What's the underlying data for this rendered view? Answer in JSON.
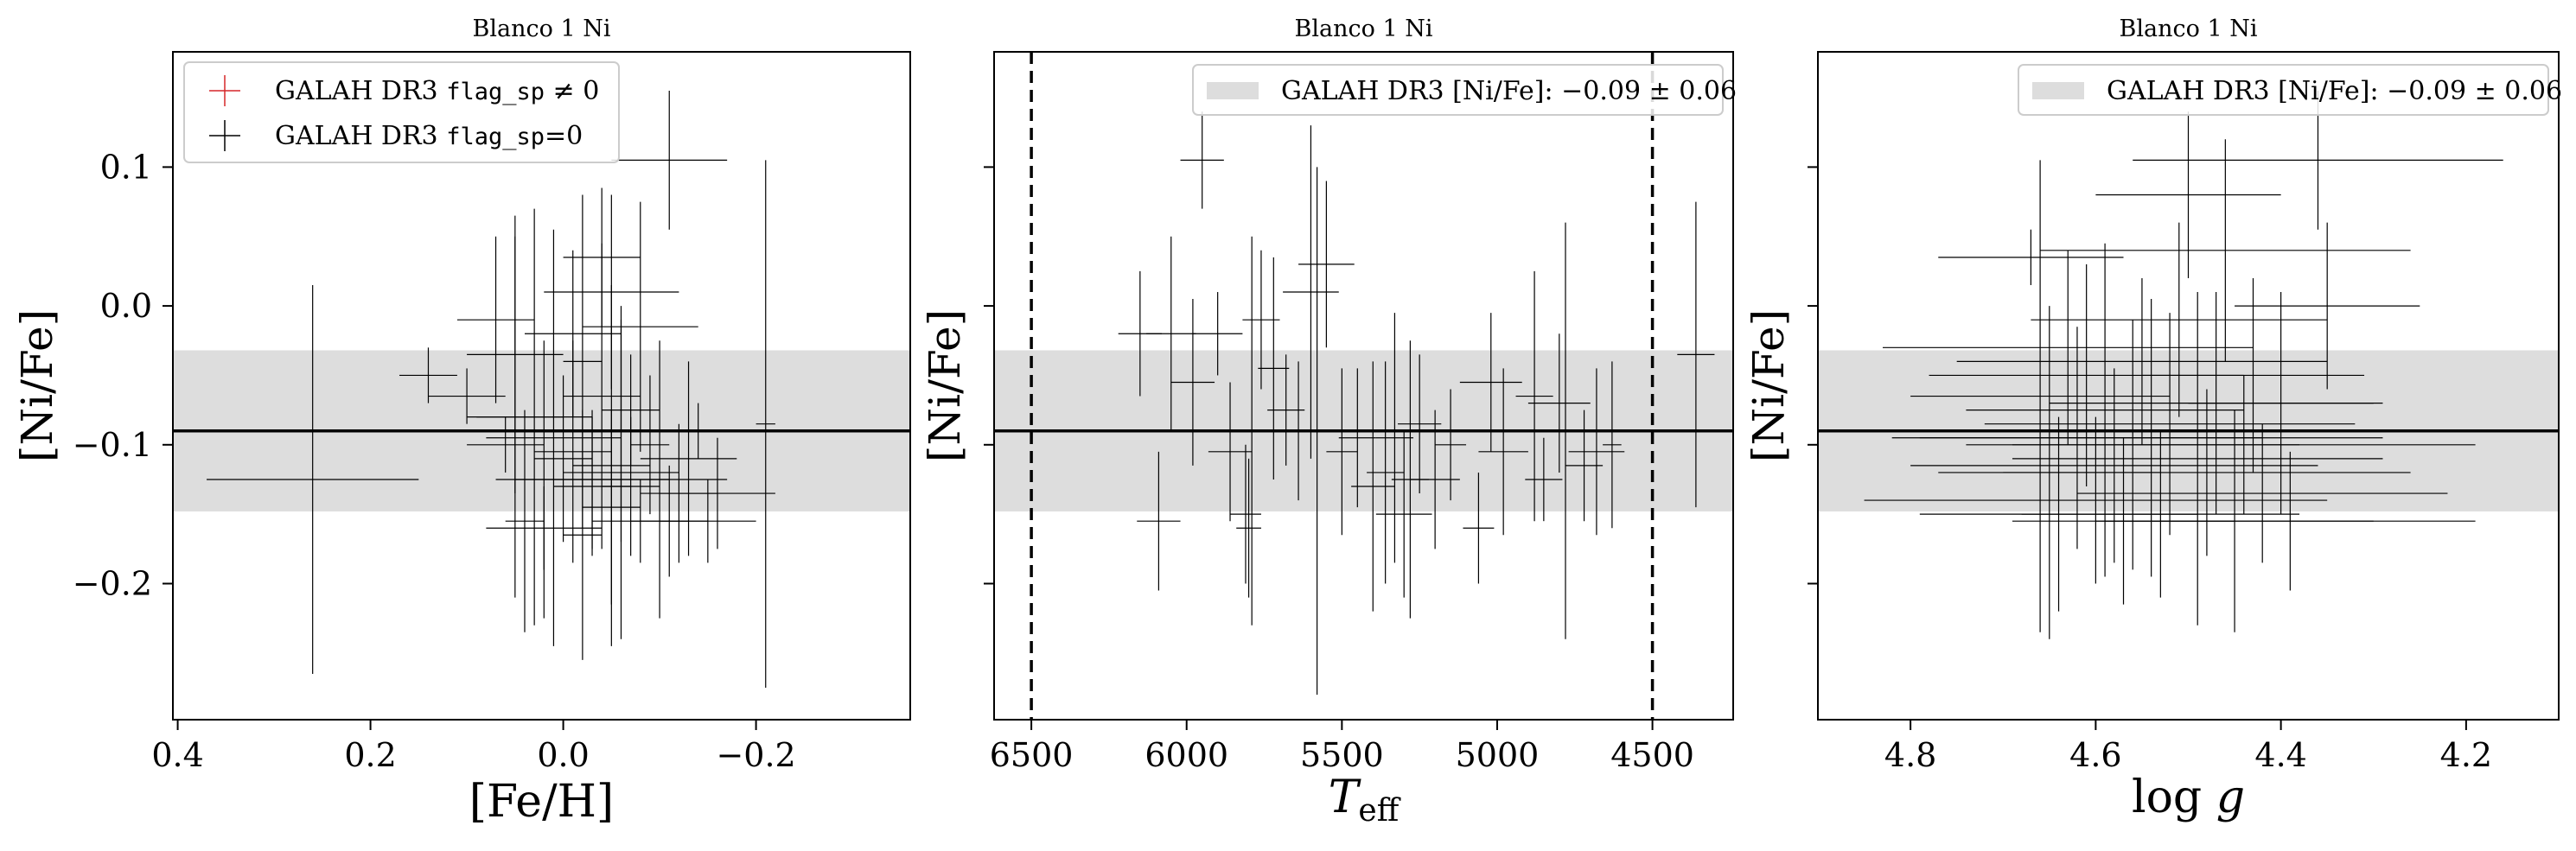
{
  "chart_data": [
    {
      "type": "scatter",
      "title": "Blanco 1 Ni",
      "xlabel": "[Fe/H]",
      "ylabel": "[Ni/Fe]",
      "xlim": [
        0.405,
        -0.36
      ],
      "ylim": [
        -0.298,
        0.183
      ],
      "xticks": [
        0.4,
        0.2,
        0.0,
        -0.2
      ],
      "xtick_labels": [
        "0.4",
        "0.2",
        "0.0",
        "−0.2"
      ],
      "yticks": [
        0.1,
        0.0,
        -0.1,
        -0.2
      ],
      "ytick_labels": [
        "0.1",
        "0.0",
        "−0.1",
        "−0.2"
      ],
      "band": {
        "center": -0.09,
        "halfwidth": 0.058
      },
      "hline": -0.09,
      "legend": {
        "position": "upper left",
        "entries": [
          {
            "prefix": "GALAH DR3 ",
            "code": "flag_sp",
            "suffix": " ≠ 0",
            "color": "#d62728"
          },
          {
            "prefix": "GALAH DR3 ",
            "code": "flag_sp",
            "suffix": "=0",
            "color": "#000000"
          }
        ]
      },
      "series": [
        {
          "color": "#000000",
          "points": [
            {
              "x": 0.26,
              "y": -0.125,
              "xerr": 0.11,
              "yerr": 0.14
            },
            {
              "x": 0.14,
              "y": -0.05,
              "xerr": 0.03,
              "yerr": 0.02
            },
            {
              "x": 0.1,
              "y": -0.065,
              "xerr": 0.04,
              "yerr": 0.02
            },
            {
              "x": 0.06,
              "y": -0.1,
              "xerr": 0.04,
              "yerr": 0.02
            },
            {
              "x": 0.05,
              "y": -0.035,
              "xerr": 0.05,
              "yerr": 0.1
            },
            {
              "x": 0.04,
              "y": -0.155,
              "xerr": 0.02,
              "yerr": 0.08
            },
            {
              "x": 0.03,
              "y": -0.08,
              "xerr": 0.06,
              "yerr": 0.15
            },
            {
              "x": 0.02,
              "y": -0.125,
              "xerr": 0.05,
              "yerr": 0.1
            },
            {
              "x": 0.02,
              "y": -0.16,
              "xerr": 0.06,
              "yerr": 0.03
            },
            {
              "x": 0.01,
              "y": -0.095,
              "xerr": 0.07,
              "yerr": 0.15
            },
            {
              "x": 0.0,
              "y": -0.11,
              "xerr": 0.03,
              "yerr": 0.06
            },
            {
              "x": -0.01,
              "y": -0.105,
              "xerr": 0.04,
              "yerr": 0.08
            },
            {
              "x": -0.01,
              "y": -0.02,
              "xerr": 0.05,
              "yerr": 0.06
            },
            {
              "x": -0.02,
              "y": -0.04,
              "xerr": 0.02,
              "yerr": 0.12
            },
            {
              "x": -0.02,
              "y": -0.165,
              "xerr": 0.02,
              "yerr": 0.09
            },
            {
              "x": -0.03,
              "y": -0.13,
              "xerr": 0.04,
              "yerr": 0.05
            },
            {
              "x": -0.03,
              "y": -0.125,
              "xerr": 0.08,
              "yerr": 0.05
            },
            {
              "x": -0.04,
              "y": -0.065,
              "xerr": 0.04,
              "yerr": 0.11
            },
            {
              "x": -0.04,
              "y": 0.035,
              "xerr": 0.04,
              "yerr": 0.05
            },
            {
              "x": -0.05,
              "y": -0.145,
              "xerr": 0.03,
              "yerr": 0.07
            },
            {
              "x": -0.05,
              "y": -0.115,
              "xerr": 0.04,
              "yerr": 0.13
            },
            {
              "x": -0.06,
              "y": -0.12,
              "xerr": 0.06,
              "yerr": 0.12
            },
            {
              "x": -0.06,
              "y": -0.09,
              "xerr": 0.05,
              "yerr": 0.08
            },
            {
              "x": -0.07,
              "y": -0.075,
              "xerr": 0.03,
              "yerr": 0.04
            },
            {
              "x": -0.07,
              "y": -0.13,
              "xerr": 0.03,
              "yerr": 0.05
            },
            {
              "x": -0.08,
              "y": -0.015,
              "xerr": 0.06,
              "yerr": 0.09
            },
            {
              "x": -0.08,
              "y": -0.155,
              "xerr": 0.05,
              "yerr": 0.03
            },
            {
              "x": -0.09,
              "y": -0.1,
              "xerr": 0.02,
              "yerr": 0.05
            },
            {
              "x": -0.1,
              "y": -0.125,
              "xerr": 0.07,
              "yerr": 0.1
            },
            {
              "x": -0.11,
              "y": 0.105,
              "xerr": 0.06,
              "yerr": 0.05
            },
            {
              "x": -0.11,
              "y": -0.155,
              "xerr": 0.04,
              "yerr": 0.04
            },
            {
              "x": -0.12,
              "y": -0.135,
              "xerr": 0.04,
              "yerr": 0.05
            },
            {
              "x": -0.13,
              "y": -0.11,
              "xerr": 0.05,
              "yerr": 0.07
            },
            {
              "x": -0.15,
              "y": -0.155,
              "xerr": 0.05,
              "yerr": 0.03
            },
            {
              "x": -0.16,
              "y": -0.135,
              "xerr": 0.06,
              "yerr": 0.04
            },
            {
              "x": -0.14,
              "y": -0.09,
              "xerr": 0.18,
              "yerr": 0.02
            },
            {
              "x": -0.21,
              "y": -0.085,
              "xerr": 0.01,
              "yerr": 0.19
            },
            {
              "x": 0.05,
              "y": -0.08,
              "xerr": 0.05,
              "yerr": 0.13
            },
            {
              "x": 0.07,
              "y": -0.01,
              "xerr": 0.04,
              "yerr": 0.06
            },
            {
              "x": -0.05,
              "y": 0.01,
              "xerr": 0.07,
              "yerr": 0.07
            }
          ]
        }
      ]
    },
    {
      "type": "scatter",
      "title": "Blanco 1 Ni",
      "xlabel": "T_eff",
      "ylabel": "[Ni/Fe]",
      "xlim": [
        6620,
        4240
      ],
      "ylim": [
        -0.298,
        0.183
      ],
      "xticks": [
        6500,
        6000,
        5500,
        5000,
        4500
      ],
      "xtick_labels": [
        "6500",
        "6000",
        "5500",
        "5000",
        "4500"
      ],
      "yticks": [
        0.1,
        0.0,
        -0.1,
        -0.2
      ],
      "ytick_labels": [
        "",
        "",
        "",
        ""
      ],
      "band": {
        "center": -0.09,
        "halfwidth": 0.058
      },
      "hline": -0.09,
      "vlines": [
        6500,
        4500
      ],
      "legend": {
        "position": "upper right",
        "entries": [
          {
            "text": "GALAH DR3 [Ni/Fe]: −0.09 ± 0.06",
            "color": "#dddddd"
          }
        ]
      },
      "series": [
        {
          "color": "#000000",
          "points": [
            {
              "x": 6150,
              "y": -0.02,
              "xerr": 70,
              "yerr": 0.045
            },
            {
              "x": 6090,
              "y": -0.155,
              "xerr": 70,
              "yerr": 0.05
            },
            {
              "x": 6050,
              "y": -0.02,
              "xerr": 80,
              "yerr": 0.07
            },
            {
              "x": 5950,
              "y": 0.105,
              "xerr": 70,
              "yerr": 0.035
            },
            {
              "x": 5980,
              "y": -0.055,
              "xerr": 70,
              "yerr": 0.06
            },
            {
              "x": 5900,
              "y": -0.02,
              "xerr": 80,
              "yerr": 0.03
            },
            {
              "x": 5860,
              "y": -0.105,
              "xerr": 70,
              "yerr": 0.05
            },
            {
              "x": 5810,
              "y": -0.15,
              "xerr": 50,
              "yerr": 0.05
            },
            {
              "x": 5800,
              "y": -0.16,
              "xerr": 40,
              "yerr": 0.05
            },
            {
              "x": 5790,
              "y": -0.09,
              "xerr": 30,
              "yerr": 0.14
            },
            {
              "x": 5760,
              "y": -0.01,
              "xerr": 60,
              "yerr": 0.05
            },
            {
              "x": 5720,
              "y": -0.045,
              "xerr": 50,
              "yerr": 0.08
            },
            {
              "x": 5680,
              "y": -0.075,
              "xerr": 60,
              "yerr": 0.04
            },
            {
              "x": 5640,
              "y": -0.09,
              "xerr": 80,
              "yerr": 0.05
            },
            {
              "x": 5600,
              "y": 0.01,
              "xerr": 90,
              "yerr": 0.12
            },
            {
              "x": 5580,
              "y": -0.09,
              "xerr": 110,
              "yerr": 0.19
            },
            {
              "x": 5550,
              "y": 0.03,
              "xerr": 90,
              "yerr": 0.06
            },
            {
              "x": 5500,
              "y": -0.105,
              "xerr": 50,
              "yerr": 0.06
            },
            {
              "x": 5450,
              "y": -0.095,
              "xerr": 60,
              "yerr": 0.05
            },
            {
              "x": 5400,
              "y": -0.13,
              "xerr": 70,
              "yerr": 0.09
            },
            {
              "x": 5360,
              "y": -0.12,
              "xerr": 60,
              "yerr": 0.08
            },
            {
              "x": 5330,
              "y": -0.095,
              "xerr": 60,
              "yerr": 0.09
            },
            {
              "x": 5300,
              "y": -0.15,
              "xerr": 90,
              "yerr": 0.06
            },
            {
              "x": 5280,
              "y": -0.125,
              "xerr": 60,
              "yerr": 0.1
            },
            {
              "x": 5250,
              "y": -0.085,
              "xerr": 70,
              "yerr": 0.05
            },
            {
              "x": 5200,
              "y": -0.125,
              "xerr": 80,
              "yerr": 0.05
            },
            {
              "x": 5150,
              "y": -0.1,
              "xerr": 50,
              "yerr": 0.04
            },
            {
              "x": 5060,
              "y": -0.16,
              "xerr": 50,
              "yerr": 0.04
            },
            {
              "x": 5020,
              "y": -0.055,
              "xerr": 100,
              "yerr": 0.05
            },
            {
              "x": 4980,
              "y": -0.105,
              "xerr": 80,
              "yerr": 0.06
            },
            {
              "x": 4880,
              "y": -0.065,
              "xerr": 60,
              "yerr": 0.09
            },
            {
              "x": 4850,
              "y": -0.125,
              "xerr": 60,
              "yerr": 0.03
            },
            {
              "x": 4800,
              "y": -0.07,
              "xerr": 100,
              "yerr": 0.05
            },
            {
              "x": 4780,
              "y": -0.09,
              "xerr": 100,
              "yerr": 0.15
            },
            {
              "x": 4720,
              "y": -0.115,
              "xerr": 60,
              "yerr": 0.04
            },
            {
              "x": 4680,
              "y": -0.105,
              "xerr": 90,
              "yerr": 0.06
            },
            {
              "x": 4630,
              "y": -0.1,
              "xerr": 30,
              "yerr": 0.06
            },
            {
              "x": 4360,
              "y": -0.035,
              "xerr": 60,
              "yerr": 0.11
            }
          ]
        }
      ]
    },
    {
      "type": "scatter",
      "title": "Blanco 1 Ni",
      "xlabel": "log g",
      "ylabel": "[Ni/Fe]",
      "xlim": [
        4.9,
        4.1
      ],
      "ylim": [
        -0.298,
        0.183
      ],
      "xticks": [
        4.8,
        4.6,
        4.4,
        4.2
      ],
      "xtick_labels": [
        "4.8",
        "4.6",
        "4.4",
        "4.2"
      ],
      "yticks": [
        0.1,
        0.0,
        -0.1,
        -0.2
      ],
      "ytick_labels": [
        "",
        "",
        "",
        ""
      ],
      "band": {
        "center": -0.09,
        "halfwidth": 0.058
      },
      "hline": -0.09,
      "legend": {
        "position": "upper right",
        "entries": [
          {
            "text": "GALAH DR3 [Ni/Fe]: −0.09 ± 0.06",
            "color": "#dddddd"
          }
        ]
      },
      "series": [
        {
          "color": "#000000",
          "points": [
            {
              "x": 4.67,
              "y": 0.035,
              "xerr": 0.1,
              "yerr": 0.02
            },
            {
              "x": 4.66,
              "y": -0.065,
              "xerr": 0.14,
              "yerr": 0.17
            },
            {
              "x": 4.65,
              "y": -0.12,
              "xerr": 0.12,
              "yerr": 0.12
            },
            {
              "x": 4.64,
              "y": -0.15,
              "xerr": 0.15,
              "yerr": 0.07
            },
            {
              "x": 4.63,
              "y": -0.03,
              "xerr": 0.2,
              "yerr": 0.07
            },
            {
              "x": 4.62,
              "y": -0.095,
              "xerr": 0.2,
              "yerr": 0.08
            },
            {
              "x": 4.61,
              "y": -0.05,
              "xerr": 0.17,
              "yerr": 0.08
            },
            {
              "x": 4.6,
              "y": -0.14,
              "xerr": 0.25,
              "yerr": 0.06
            },
            {
              "x": 4.59,
              "y": -0.075,
              "xerr": 0.15,
              "yerr": 0.12
            },
            {
              "x": 4.58,
              "y": -0.115,
              "xerr": 0.22,
              "yerr": 0.07
            },
            {
              "x": 4.57,
              "y": -0.155,
              "xerr": 0.12,
              "yerr": 0.06
            },
            {
              "x": 4.56,
              "y": -0.1,
              "xerr": 0.18,
              "yerr": 0.09
            },
            {
              "x": 4.55,
              "y": -0.04,
              "xerr": 0.2,
              "yerr": 0.06
            },
            {
              "x": 4.54,
              "y": -0.095,
              "xerr": 0.25,
              "yerr": 0.1
            },
            {
              "x": 4.53,
              "y": -0.15,
              "xerr": 0.15,
              "yerr": 0.06
            },
            {
              "x": 4.52,
              "y": -0.085,
              "xerr": 0.2,
              "yerr": 0.08
            },
            {
              "x": 4.51,
              "y": -0.01,
              "xerr": 0.16,
              "yerr": 0.07
            },
            {
              "x": 4.5,
              "y": 0.08,
              "xerr": 0.1,
              "yerr": 0.06
            },
            {
              "x": 4.49,
              "y": -0.11,
              "xerr": 0.2,
              "yerr": 0.12
            },
            {
              "x": 4.48,
              "y": -0.12,
              "xerr": 0.22,
              "yerr": 0.06
            },
            {
              "x": 4.47,
              "y": -0.07,
              "xerr": 0.18,
              "yerr": 0.08
            },
            {
              "x": 4.46,
              "y": 0.04,
              "xerr": 0.2,
              "yerr": 0.08
            },
            {
              "x": 4.45,
              "y": -0.155,
              "xerr": 0.15,
              "yerr": 0.08
            },
            {
              "x": 4.44,
              "y": -0.1,
              "xerr": 0.25,
              "yerr": 0.05
            },
            {
              "x": 4.43,
              "y": -0.05,
              "xerr": 0.12,
              "yerr": 0.07
            },
            {
              "x": 4.42,
              "y": -0.135,
              "xerr": 0.2,
              "yerr": 0.05
            },
            {
              "x": 4.4,
              "y": -0.07,
              "xerr": 0.1,
              "yerr": 0.08
            },
            {
              "x": 4.39,
              "y": -0.155,
              "xerr": 0.2,
              "yerr": 0.05
            },
            {
              "x": 4.36,
              "y": 0.105,
              "xerr": 0.2,
              "yerr": 0.05
            },
            {
              "x": 4.35,
              "y": 0.0,
              "xerr": 0.1,
              "yerr": 0.06
            }
          ]
        }
      ]
    }
  ]
}
